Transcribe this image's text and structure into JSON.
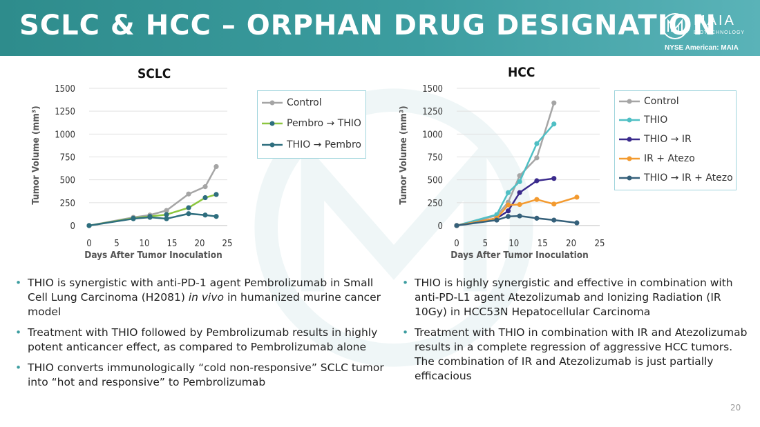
{
  "header": {
    "title": "SCLC & HCC – ORPHAN DRUG DESIGNATION",
    "brand": "MAIA",
    "brand_sub": "BIOTECHNOLOGY",
    "exchange": "NYSE American: MAIA"
  },
  "colors": {
    "header": "#3c9da0",
    "control": "#a5a5a5",
    "pembro_thio": "#8cc63f",
    "thio_pembro": "#2e6e7e",
    "thio": "#4fbfc4",
    "thio_ir": "#3a2a8c",
    "ir_atezo": "#f39a2f",
    "thio_ir_atezo": "#35607a"
  },
  "chart_data": [
    {
      "type": "line",
      "title": "SCLC",
      "xlabel": "Days After Tumor Inoculation",
      "ylabel": "Tumor Volume (mm³)",
      "xlim": [
        0,
        25
      ],
      "ylim": [
        0,
        1500
      ],
      "xticks": [
        "0",
        "5",
        "10",
        "15",
        "20",
        "25"
      ],
      "yticks": [
        "0",
        "250",
        "500",
        "750",
        "1000",
        "1250",
        "1500"
      ],
      "series": [
        {
          "name": "Control",
          "color": "#a5a5a5",
          "x": [
            0,
            8,
            11,
            14,
            18,
            21,
            23
          ],
          "y": [
            0,
            90,
            115,
            165,
            345,
            425,
            645
          ]
        },
        {
          "name": "Pembro → THIO",
          "color": "#8cc63f",
          "x": [
            0,
            8,
            11,
            14,
            18,
            21,
            23
          ],
          "y": [
            0,
            80,
            100,
            120,
            195,
            305,
            340
          ]
        },
        {
          "name": "THIO → Pembro",
          "color": "#2e6e7e",
          "x": [
            0,
            8,
            11,
            14,
            18,
            21,
            23
          ],
          "y": [
            0,
            75,
            90,
            75,
            130,
            115,
            100
          ]
        }
      ]
    },
    {
      "type": "line",
      "title": "HCC",
      "xlabel": "Days After Tumor Inoculation",
      "ylabel": "Tumor Volume (mm³)",
      "xlim": [
        0,
        25
      ],
      "ylim": [
        0,
        1500
      ],
      "xticks": [
        "0",
        "5",
        "10",
        "15",
        "20",
        "25"
      ],
      "yticks": [
        "0",
        "250",
        "500",
        "750",
        "1000",
        "1250",
        "1500"
      ],
      "series": [
        {
          "name": "Control",
          "color": "#a5a5a5",
          "x": [
            0,
            7,
            9,
            11,
            14,
            17
          ],
          "y": [
            0,
            110,
            255,
            545,
            740,
            1340
          ]
        },
        {
          "name": "THIO",
          "color": "#4fbfc4",
          "x": [
            0,
            7,
            9,
            11,
            14,
            17
          ],
          "y": [
            0,
            120,
            360,
            480,
            895,
            1110
          ]
        },
        {
          "name": "THIO → IR",
          "color": "#3a2a8c",
          "x": [
            0,
            7,
            9,
            11,
            14,
            17
          ],
          "y": [
            0,
            80,
            160,
            360,
            490,
            515
          ]
        },
        {
          "name": "IR + Atezo",
          "color": "#f39a2f",
          "x": [
            0,
            7,
            9,
            11,
            14,
            17,
            21
          ],
          "y": [
            0,
            80,
            225,
            230,
            285,
            235,
            310
          ]
        },
        {
          "name": "THIO → IR + Atezo",
          "color": "#35607a",
          "x": [
            0,
            7,
            9,
            11,
            14,
            17,
            21
          ],
          "y": [
            0,
            60,
            100,
            105,
            80,
            60,
            30
          ]
        }
      ]
    }
  ],
  "sclc_bullets": {
    "b1_pre": "THIO is synergistic with anti-PD-1 agent Pembrolizumab in Small Cell Lung Carcinoma (H2081) ",
    "b1_em": "in vivo",
    "b1_post": " in humanized murine cancer model",
    "b2": "Treatment with THIO followed by Pembrolizumab results in highly potent anticancer effect, as compared to Pembrolizumab alone",
    "b3": "THIO converts immunologically “cold non-responsive” SCLC tumor into “hot and responsive” to Pembrolizumab"
  },
  "hcc_bullets": [
    "THIO is highly synergistic and effective in combination with anti-PD-L1 agent Atezolizumab and Ionizing Radiation (IR 10Gy) in HCC53N Hepatocellular Carcinoma",
    "Treatment with THIO in combination with IR and Atezolizumab results in a complete regression of aggressive HCC tumors. The combination of IR and Atezolizumab is just partially efficacious"
  ],
  "page_number": "20"
}
